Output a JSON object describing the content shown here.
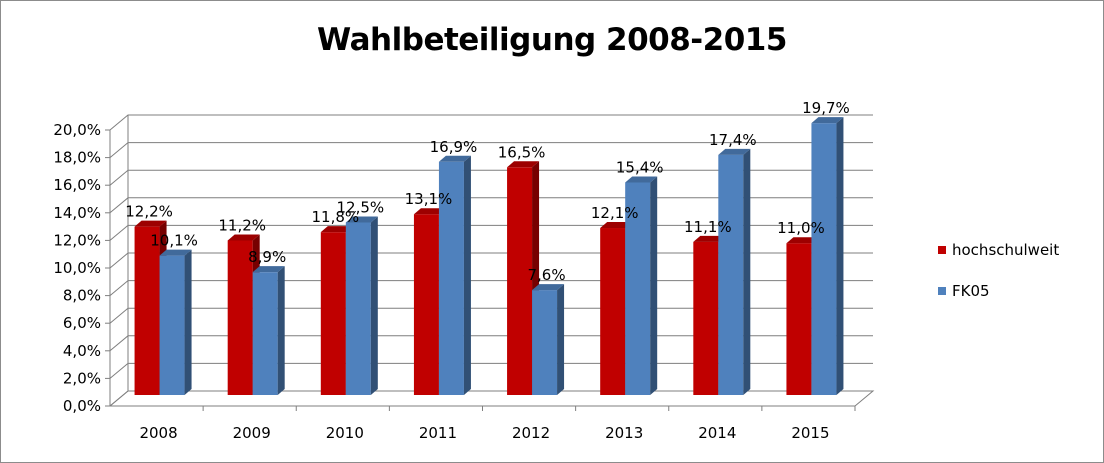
{
  "chart_data": {
    "type": "bar",
    "title": "Wahlbeteiligung 2008-2015",
    "categories": [
      "2008",
      "2009",
      "2010",
      "2011",
      "2012",
      "2013",
      "2014",
      "2015"
    ],
    "series": [
      {
        "name": "hochschulweit",
        "color": "#C00000",
        "values": [
          12.2,
          11.2,
          11.8,
          13.1,
          16.5,
          12.1,
          11.1,
          11.0
        ],
        "labels": [
          "12,2%",
          "11,2%",
          "11,8%",
          "13,1%",
          "16,5%",
          "12,1%",
          "11,1%",
          "11,0%"
        ]
      },
      {
        "name": "FK05",
        "color": "#4F81BD",
        "values": [
          10.1,
          8.9,
          12.5,
          16.9,
          7.6,
          15.4,
          17.4,
          19.7
        ],
        "labels": [
          "10,1%",
          "8,9%",
          "12,5%",
          "16,9%",
          "7,6%",
          "15,4%",
          "17,4%",
          "19,7%"
        ]
      }
    ],
    "y_ticks": [
      "0,0%",
      "2,0%",
      "4,0%",
      "6,0%",
      "8,0%",
      "10,0%",
      "12,0%",
      "14,0%",
      "16,0%",
      "18,0%",
      "20,0%"
    ],
    "ylim": [
      0,
      20
    ],
    "grid": true,
    "legend_position": "right",
    "style": "3d-clustered-column"
  }
}
